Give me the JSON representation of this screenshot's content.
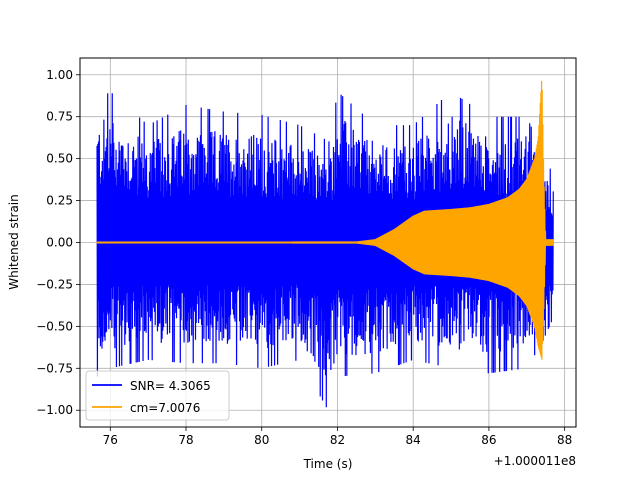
{
  "chart_data": {
    "type": "line",
    "xlabel": "Time (s)",
    "ylabel": "Whitened strain",
    "x_offset_label": "+1.000011e8",
    "xlim": [
      75.2,
      88.3
    ],
    "ylim": [
      -1.1,
      1.1
    ],
    "x_ticks": [
      "76",
      "78",
      "80",
      "82",
      "84",
      "86",
      "88"
    ],
    "y_ticks": [
      "1.00",
      "0.75",
      "0.50",
      "0.25",
      "0.00",
      "−0.25",
      "−0.50",
      "−0.75",
      "−1.00"
    ],
    "grid": true,
    "legend_position": "lower-left",
    "x_range_data": [
      75.65,
      87.7
    ],
    "series": [
      {
        "name": "SNR= 4.3065",
        "color": "#0000ff",
        "envelope": {
          "x": [
            75.65,
            76.0,
            77.0,
            78.0,
            79.0,
            80.0,
            81.0,
            81.8,
            82.0,
            83.0,
            84.0,
            85.0,
            86.0,
            87.0,
            87.4,
            87.7
          ],
          "upper": [
            0.85,
            0.9,
            0.7,
            0.82,
            0.78,
            0.76,
            0.7,
            0.6,
            0.9,
            0.7,
            0.7,
            0.9,
            0.75,
            0.75,
            0.55,
            0.4
          ],
          "lower": [
            -0.8,
            -0.75,
            -0.7,
            -0.72,
            -0.72,
            -0.75,
            -0.7,
            -1.02,
            -0.8,
            -0.78,
            -0.7,
            -0.75,
            -0.78,
            -0.75,
            -0.6,
            -0.45
          ]
        }
      },
      {
        "name": "cm=7.0076",
        "color": "#ffa500",
        "envelope": {
          "x": [
            75.65,
            82.5,
            83.0,
            83.5,
            84.0,
            84.3,
            85.0,
            85.5,
            86.0,
            86.5,
            86.8,
            87.0,
            87.2,
            87.3,
            87.4,
            87.45,
            87.5,
            87.7
          ],
          "upper": [
            0.005,
            0.006,
            0.02,
            0.08,
            0.16,
            0.19,
            0.2,
            0.21,
            0.23,
            0.27,
            0.32,
            0.38,
            0.5,
            0.62,
            1.0,
            0.4,
            0.02,
            0.02
          ],
          "lower": [
            -0.005,
            -0.006,
            -0.02,
            -0.08,
            -0.16,
            -0.19,
            -0.2,
            -0.21,
            -0.23,
            -0.27,
            -0.32,
            -0.38,
            -0.5,
            -0.62,
            -0.7,
            -0.4,
            -0.02,
            -0.02
          ]
        }
      }
    ]
  }
}
